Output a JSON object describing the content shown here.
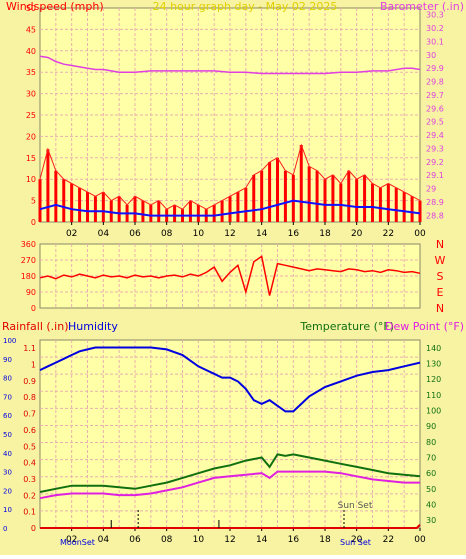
{
  "colors": {
    "background": "#f7f3a3",
    "plot": "#ffffa8",
    "frame": "#8a8a6a",
    "grid": "#e8b0b0",
    "wind": "#ff0000",
    "gust": "#ff2020",
    "avg_wind": "#1010ff",
    "green": "#00a000",
    "baro": "#e040e0",
    "humidity": "#0000e0",
    "temperature": "#107010",
    "dewpoint": "#e020e0",
    "rain": "#e00000",
    "title": "#e0d000",
    "black": "#000000"
  },
  "chart_data": [
    {
      "type": "line",
      "title": "24 hour graph day - May 02 2025",
      "left_label": "Windspeed (mph)",
      "right_label": "Barometer (.in)",
      "x_ticks": [
        "02",
        "04",
        "06",
        "08",
        "10",
        "12",
        "14",
        "16",
        "18",
        "20",
        "22",
        "00"
      ],
      "x_range": [
        0,
        24
      ],
      "left_ticks": [
        "0",
        "5",
        "10",
        "15",
        "20",
        "25",
        "30",
        "35",
        "40",
        "45",
        "50"
      ],
      "ylim": [
        0,
        50
      ],
      "right_ticks": [
        "28.8",
        "28.9",
        "29",
        "29.1",
        "29.2",
        "29.3",
        "29.4",
        "29.5",
        "29.6",
        "29.7",
        "29.8",
        "29.9",
        "30",
        "30.1",
        "30.2",
        "30.3"
      ],
      "right_ylim": [
        28.75,
        30.35
      ],
      "series": [
        {
          "key": "barometer",
          "axis": "right",
          "x": [
            0,
            0.5,
            1,
            1.5,
            2,
            2.5,
            3,
            3.5,
            4,
            4.5,
            5,
            5.5,
            6,
            7,
            8,
            9,
            10,
            11,
            12,
            13,
            14,
            15,
            16,
            17,
            18,
            19,
            20,
            21,
            22,
            23,
            23.5,
            24
          ],
          "values": [
            29.99,
            29.98,
            29.95,
            29.93,
            29.92,
            29.91,
            29.9,
            29.89,
            29.89,
            29.88,
            29.87,
            29.87,
            29.87,
            29.88,
            29.88,
            29.88,
            29.88,
            29.88,
            29.87,
            29.87,
            29.86,
            29.86,
            29.86,
            29.86,
            29.86,
            29.87,
            29.87,
            29.88,
            29.88,
            29.9,
            29.9,
            29.89
          ]
        },
        {
          "key": "wind_gust",
          "axis": "left",
          "x": [
            0,
            0.5,
            1,
            1.5,
            2,
            2.5,
            3,
            3.5,
            4,
            4.5,
            5,
            5.5,
            6,
            6.5,
            7,
            7.5,
            8,
            8.5,
            9,
            9.5,
            10,
            10.5,
            11,
            11.5,
            12,
            12.5,
            13,
            13.5,
            14,
            14.5,
            15,
            15.5,
            16,
            16.5,
            17,
            17.5,
            18,
            18.5,
            19,
            19.5,
            20,
            20.5,
            21,
            21.5,
            22,
            22.5,
            23,
            23.5,
            24
          ],
          "values": [
            10,
            17,
            12,
            10,
            9,
            8,
            7,
            6,
            7,
            5,
            6,
            4,
            6,
            5,
            4,
            5,
            3,
            4,
            3,
            5,
            4,
            3,
            4,
            5,
            6,
            7,
            8,
            11,
            12,
            14,
            15,
            12,
            11,
            18,
            13,
            12,
            10,
            11,
            9,
            12,
            10,
            11,
            9,
            8,
            9,
            8,
            7,
            6,
            5
          ]
        },
        {
          "key": "wind_avg",
          "axis": "left",
          "x": [
            0,
            1,
            2,
            3,
            4,
            5,
            6,
            7,
            8,
            9,
            10,
            11,
            12,
            13,
            14,
            15,
            16,
            17,
            18,
            19,
            20,
            21,
            22,
            23,
            24
          ],
          "values": [
            3,
            4,
            3,
            2.5,
            2.5,
            2,
            2,
            1.5,
            1.5,
            1.5,
            1.5,
            1.5,
            2,
            2.5,
            3,
            4,
            5,
            4.5,
            4,
            4,
            3.5,
            3.5,
            3,
            2.5,
            2
          ]
        }
      ]
    },
    {
      "type": "line",
      "left_label": "",
      "right_label": "",
      "right_letters": [
        "N",
        "W",
        "S",
        "E",
        "N"
      ],
      "x_range": [
        0,
        24
      ],
      "left_ticks": [
        "0",
        "90",
        "180",
        "270",
        "360"
      ],
      "ylim": [
        0,
        360
      ],
      "series": [
        {
          "key": "wind_direction",
          "x": [
            0,
            0.5,
            1,
            1.5,
            2,
            2.5,
            3,
            3.5,
            4,
            4.5,
            5,
            5.5,
            6,
            6.5,
            7,
            7.5,
            8,
            8.5,
            9,
            9.5,
            10,
            10.5,
            11,
            11.5,
            12,
            12.5,
            13,
            13.5,
            14,
            14.5,
            15,
            15.5,
            16,
            16.5,
            17,
            17.5,
            18,
            18.5,
            19,
            19.5,
            20,
            20.5,
            21,
            21.5,
            22,
            22.5,
            23,
            23.5,
            24
          ],
          "values": [
            170,
            180,
            165,
            185,
            175,
            190,
            180,
            170,
            185,
            175,
            180,
            170,
            185,
            175,
            180,
            170,
            180,
            185,
            175,
            190,
            180,
            200,
            230,
            150,
            200,
            240,
            90,
            260,
            290,
            70,
            250,
            240,
            230,
            220,
            210,
            220,
            215,
            210,
            205,
            220,
            215,
            205,
            210,
            200,
            215,
            210,
            200,
            205,
            195
          ]
        }
      ]
    },
    {
      "type": "line",
      "left_label": "Rainfall (.in)",
      "left_label_2": "Humidity",
      "right_label": "Temperature (°F)",
      "right_label_2": "Dew Point (°F)",
      "x_ticks": [
        "02",
        "04",
        "06",
        "08",
        "10",
        "12",
        "14",
        "16",
        "18",
        "20",
        "22",
        "00"
      ],
      "x_range": [
        0,
        24
      ],
      "hum_ticks": [
        "0",
        "10",
        "20",
        "30",
        "40",
        "50",
        "60",
        "70",
        "80",
        "90",
        "100"
      ],
      "rain_ticks": [
        "0",
        "0.1",
        "0.2",
        "0.3",
        "0.4",
        "0.5",
        "0.6",
        "0.7",
        "0.8",
        "0.9",
        "1",
        "1.1"
      ],
      "rain_ylim": [
        0,
        1.15
      ],
      "temp_ticks": [
        "30",
        "40",
        "50",
        "60",
        "70",
        "80",
        "90",
        "100",
        "110",
        "120",
        "130",
        "140"
      ],
      "temp_ylim": [
        25,
        145
      ],
      "annotations": [
        "Sun Set",
        "MoonSet",
        "Sun Set"
      ],
      "series": [
        {
          "key": "humidity",
          "axis": "humidity",
          "x": [
            0,
            0.5,
            1,
            1.5,
            2,
            2.5,
            3,
            3.5,
            4,
            5,
            6,
            7,
            8,
            9,
            10,
            10.5,
            11,
            11.5,
            12,
            12.5,
            13,
            13.5,
            14,
            14.5,
            15,
            15.5,
            16,
            16.5,
            17,
            18,
            19,
            20,
            21,
            22,
            23,
            24
          ],
          "values": [
            84,
            86,
            88,
            90,
            92,
            94,
            95,
            96,
            96,
            96,
            96,
            96,
            95,
            92,
            86,
            84,
            82,
            80,
            80,
            78,
            74,
            68,
            66,
            68,
            65,
            62,
            62,
            66,
            70,
            75,
            78,
            81,
            83,
            84,
            86,
            88
          ]
        },
        {
          "key": "temperature",
          "axis": "temp",
          "x": [
            0,
            1,
            2,
            3,
            4,
            5,
            6,
            7,
            8,
            9,
            10,
            11,
            12,
            13,
            14,
            14.5,
            15,
            15.5,
            16,
            17,
            18,
            19,
            20,
            21,
            22,
            23,
            24
          ],
          "values": [
            48,
            50,
            52,
            52,
            52,
            51,
            50,
            52,
            54,
            57,
            60,
            63,
            65,
            68,
            70,
            64,
            72,
            71,
            72,
            70,
            68,
            66,
            64,
            62,
            60,
            59,
            58
          ]
        },
        {
          "key": "dewpoint",
          "axis": "temp",
          "x": [
            0,
            1,
            2,
            3,
            4,
            5,
            6,
            7,
            8,
            9,
            10,
            11,
            12,
            13,
            14,
            14.5,
            15,
            16,
            17,
            18,
            19,
            20,
            21,
            22,
            23,
            24
          ],
          "values": [
            44,
            46,
            47,
            47,
            47,
            46,
            46,
            47,
            49,
            51,
            54,
            57,
            58,
            59,
            60,
            57,
            61,
            61,
            61,
            61,
            60,
            58,
            56,
            55,
            54,
            54
          ]
        },
        {
          "key": "rainfall",
          "axis": "rain",
          "x": [
            0,
            3,
            6,
            9,
            12,
            15,
            18,
            21,
            23.8,
            24
          ],
          "values": [
            0,
            0,
            0,
            0,
            0,
            0,
            0,
            0,
            0,
            0.02
          ]
        }
      ]
    }
  ]
}
